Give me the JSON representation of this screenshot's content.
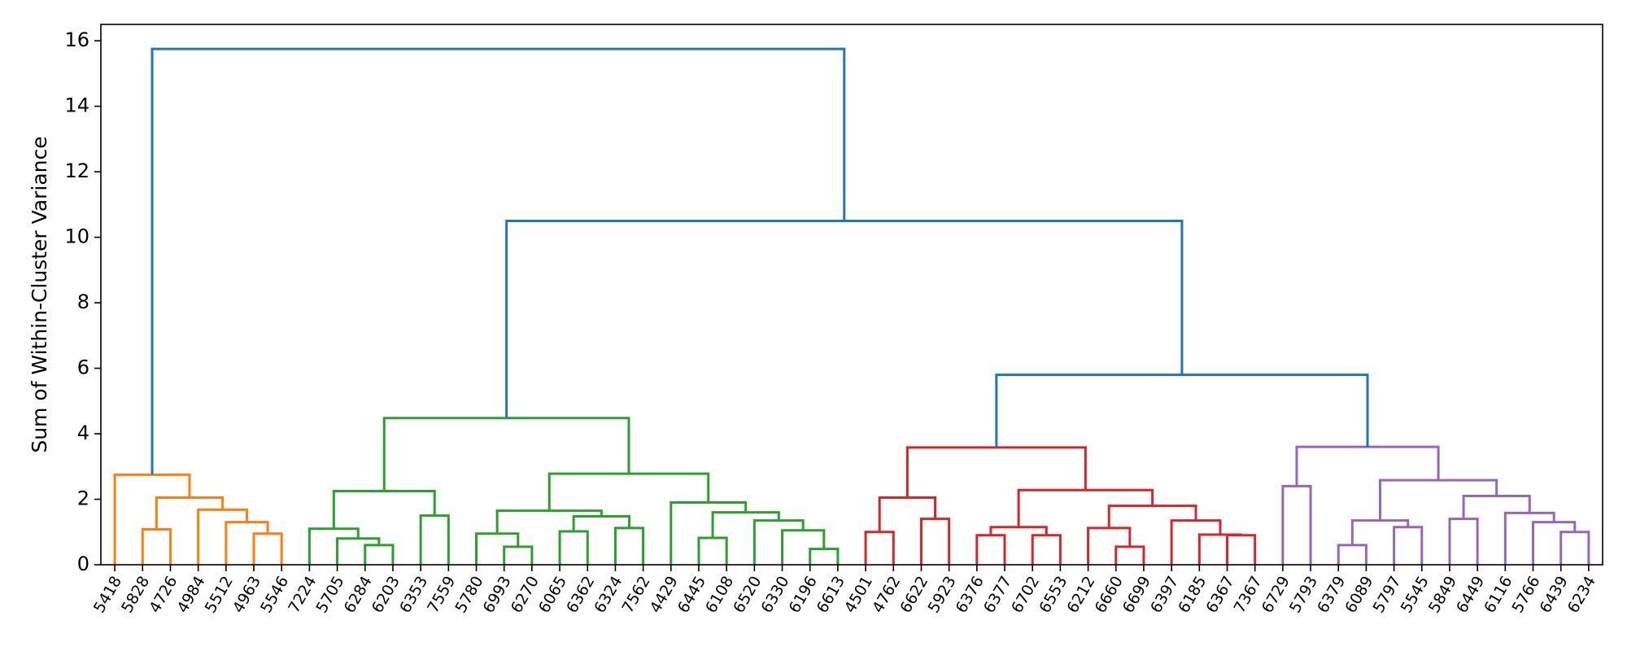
{
  "chart_data": {
    "type": "dendrogram",
    "title": "",
    "xlabel": "",
    "ylabel": "Sum of Within-Cluster Variance",
    "ylim": [
      0,
      16.5
    ],
    "yticks": [
      0,
      2,
      4,
      6,
      8,
      10,
      12,
      14,
      16
    ],
    "grid": false,
    "colors": {
      "c0": "#1f77b4",
      "c1": "#ff7f0e",
      "c2": "#2ca02c",
      "c3": "#d62728",
      "c4": "#9467bd"
    },
    "leaves": [
      "5418",
      "5828",
      "4726",
      "4984",
      "5512",
      "4963",
      "5546",
      "7224",
      "5705",
      "6284",
      "6203",
      "6353",
      "7559",
      "5780",
      "6993",
      "6270",
      "6065",
      "6362",
      "6324",
      "7562",
      "4429",
      "6445",
      "6108",
      "6520",
      "6330",
      "6196",
      "6613",
      "4501",
      "4762",
      "6622",
      "5923",
      "6376",
      "6377",
      "6702",
      "6553",
      "6212",
      "6660",
      "6699",
      "6397",
      "6185",
      "6367",
      "7367",
      "6729",
      "5793",
      "6379",
      "6089",
      "5797",
      "5545",
      "5849",
      "6449",
      "6116",
      "5766",
      "6439",
      "6234"
    ],
    "tree": {
      "h": 15.75,
      "c": "c0",
      "l": {
        "h": 2.75,
        "c": "c1",
        "l": 0,
        "r": {
          "h": 2.05,
          "c": "c1",
          "l": {
            "h": 1.08,
            "c": "c1",
            "l": 1,
            "r": 2
          },
          "r": {
            "h": 1.68,
            "c": "c1",
            "l": 3,
            "r": {
              "h": 1.3,
              "c": "c1",
              "l": 4,
              "r": {
                "h": 0.95,
                "c": "c1",
                "l": 5,
                "r": 6
              }
            }
          }
        }
      },
      "r": {
        "h": 10.5,
        "c": "c0",
        "l": {
          "h": 4.48,
          "c": "c2",
          "l": {
            "h": 2.25,
            "c": "c2",
            "l": {
              "h": 1.1,
              "c": "c2",
              "l": 7,
              "r": {
                "h": 0.8,
                "c": "c2",
                "l": 8,
                "r": {
                  "h": 0.6,
                  "c": "c2",
                  "l": 9,
                  "r": 10
                }
              }
            },
            "r": {
              "h": 1.5,
              "c": "c2",
              "l": 11,
              "r": 12
            }
          },
          "r": {
            "h": 2.78,
            "c": "c2",
            "l": {
              "h": 1.65,
              "c": "c2",
              "l": {
                "h": 0.95,
                "c": "c2",
                "l": 13,
                "r": {
                  "h": 0.55,
                  "c": "c2",
                  "l": 14,
                  "r": 15
                }
              },
              "r": {
                "h": 1.48,
                "c": "c2",
                "l": {
                  "h": 1.02,
                  "c": "c2",
                  "l": 16,
                  "r": 17
                },
                "r": {
                  "h": 1.12,
                  "c": "c2",
                  "l": 18,
                  "r": 19
                }
              }
            },
            "r": {
              "h": 1.9,
              "c": "c2",
              "l": 20,
              "r": {
                "h": 1.6,
                "c": "c2",
                "l": {
                  "h": 0.82,
                  "c": "c2",
                  "l": 21,
                  "r": 22
                },
                "r": {
                  "h": 1.35,
                  "c": "c2",
                  "l": 23,
                  "r": {
                    "h": 1.05,
                    "c": "c2",
                    "l": 24,
                    "r": {
                      "h": 0.48,
                      "c": "c2",
                      "l": 25,
                      "r": 26
                    }
                  }
                }
              }
            }
          }
        },
        "r": {
          "h": 5.8,
          "c": "c0",
          "l": {
            "h": 3.58,
            "c": "c3",
            "l": {
              "h": 2.05,
              "c": "c3",
              "l": {
                "h": 1.0,
                "c": "c3",
                "l": 27,
                "r": 28
              },
              "r": {
                "h": 1.4,
                "c": "c3",
                "l": 29,
                "r": 30
              }
            },
            "r": {
              "h": 2.28,
              "c": "c3",
              "l": {
                "h": 1.15,
                "c": "c3",
                "l": {
                  "h": 0.9,
                  "c": "c3",
                  "l": 31,
                  "r": 32
                },
                "r": {
                  "h": 0.9,
                  "c": "c3",
                  "l": 33,
                  "r": 34
                }
              },
              "r": {
                "h": 1.8,
                "c": "c3",
                "l": {
                  "h": 1.12,
                  "c": "c3",
                  "l": 35,
                  "r": {
                    "h": 0.55,
                    "c": "c3",
                    "l": 36,
                    "r": 37
                  }
                },
                "r": {
                  "h": 1.35,
                  "c": "c3",
                  "l": 38,
                  "r": {
                    "h": 0.92,
                    "c": "c3",
                    "l": 39,
                    "r": {
                      "h": 0.9,
                      "c": "c3",
                      "l": 40,
                      "r": 41
                    }
                  }
                }
              }
            }
          },
          "r": {
            "h": 3.6,
            "c": "c4",
            "l": {
              "h": 2.4,
              "c": "c4",
              "l": 42,
              "r": 43
            },
            "r": {
              "h": 2.58,
              "c": "c4",
              "l": {
                "h": 1.35,
                "c": "c4",
                "l": {
                  "h": 0.6,
                  "c": "c4",
                  "l": 44,
                  "r": 45
                },
                "r": {
                  "h": 1.15,
                  "c": "c4",
                  "l": 46,
                  "r": 47
                }
              },
              "r": {
                "h": 2.1,
                "c": "c4",
                "l": {
                  "h": 1.4,
                  "c": "c4",
                  "l": 48,
                  "r": 49
                },
                "r": {
                  "h": 1.58,
                  "c": "c4",
                  "l": 50,
                  "r": {
                    "h": 1.3,
                    "c": "c4",
                    "l": 51,
                    "r": {
                      "h": 1.0,
                      "c": "c4",
                      "l": 52,
                      "r": 53
                    }
                  }
                }
              }
            }
          }
        }
      }
    }
  }
}
